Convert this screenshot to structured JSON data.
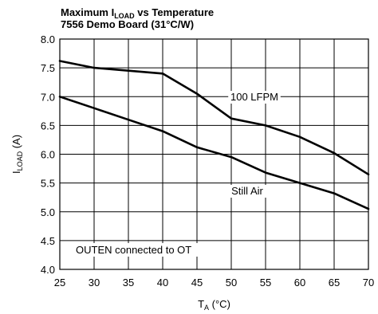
{
  "chart_data": {
    "type": "line",
    "title_main": "Maximum I",
    "title_sub": "LOAD",
    "title_rest": " vs Temperature",
    "subtitle": "7556 Demo Board (31°C/W)",
    "xlabel_main": "T",
    "xlabel_sub": "A",
    "xlabel_unit": " (°C)",
    "ylabel_main": "I",
    "ylabel_sub": "LOAD",
    "ylabel_unit": " (A)",
    "xlim": [
      25,
      70
    ],
    "ylim": [
      4.0,
      8.0
    ],
    "xticks": [
      "25",
      "30",
      "35",
      "40",
      "45",
      "50",
      "55",
      "60",
      "65",
      "70"
    ],
    "yticks": [
      "4.0",
      "4.5",
      "5.0",
      "5.5",
      "6.0",
      "6.5",
      "7.0",
      "7.5",
      "8.0"
    ],
    "grid": true,
    "series": [
      {
        "name": "100 LFPM",
        "x": [
          25,
          30,
          35,
          40,
          45,
          50,
          55,
          60,
          65,
          70
        ],
        "values": [
          7.62,
          7.5,
          7.45,
          7.4,
          7.05,
          6.62,
          6.5,
          6.3,
          6.02,
          5.65
        ]
      },
      {
        "name": "Still Air",
        "x": [
          25,
          30,
          35,
          40,
          45,
          50,
          55,
          60,
          65,
          70
        ],
        "values": [
          7.0,
          6.8,
          6.6,
          6.4,
          6.12,
          5.95,
          5.68,
          5.5,
          5.32,
          5.05
        ]
      }
    ],
    "annotations": [
      {
        "text": "OUTEN connected to OT"
      }
    ]
  }
}
